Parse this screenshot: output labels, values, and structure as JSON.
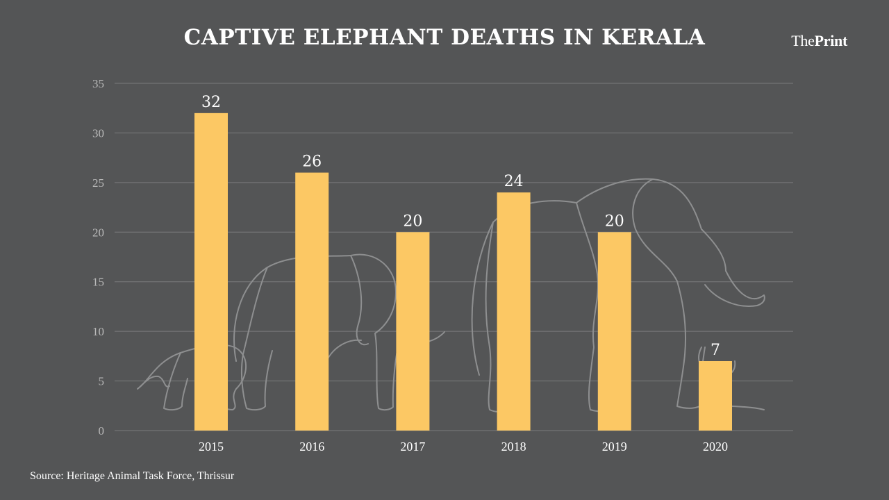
{
  "header": {
    "title": "CAPTIVE ELEPHANT DEATHS IN KERALA",
    "brand_part1": "The",
    "brand_part2": "Print"
  },
  "footer": {
    "source": "Source: Heritage Animal Task Force, Thrissur"
  },
  "colors": {
    "background": "#545556",
    "bar": "#fcc864",
    "grid": "#7a7b7c",
    "text": "#ffffff",
    "tick_text": "#b9b9b9",
    "illustration": "#8e8f90"
  },
  "chart_data": {
    "type": "bar",
    "title": "CAPTIVE ELEPHANT DEATHS IN KERALA",
    "xlabel": "",
    "ylabel": "",
    "categories": [
      "2015",
      "2016",
      "2017",
      "2018",
      "2019",
      "2020"
    ],
    "values": [
      32,
      26,
      20,
      24,
      20,
      7
    ],
    "data_labels": [
      "32",
      "26",
      "20",
      "24",
      "20",
      "7"
    ],
    "ylim": [
      0,
      35
    ],
    "yticks": [
      0,
      5,
      10,
      15,
      20,
      25,
      30,
      35
    ],
    "grid": true,
    "legend": "none"
  }
}
